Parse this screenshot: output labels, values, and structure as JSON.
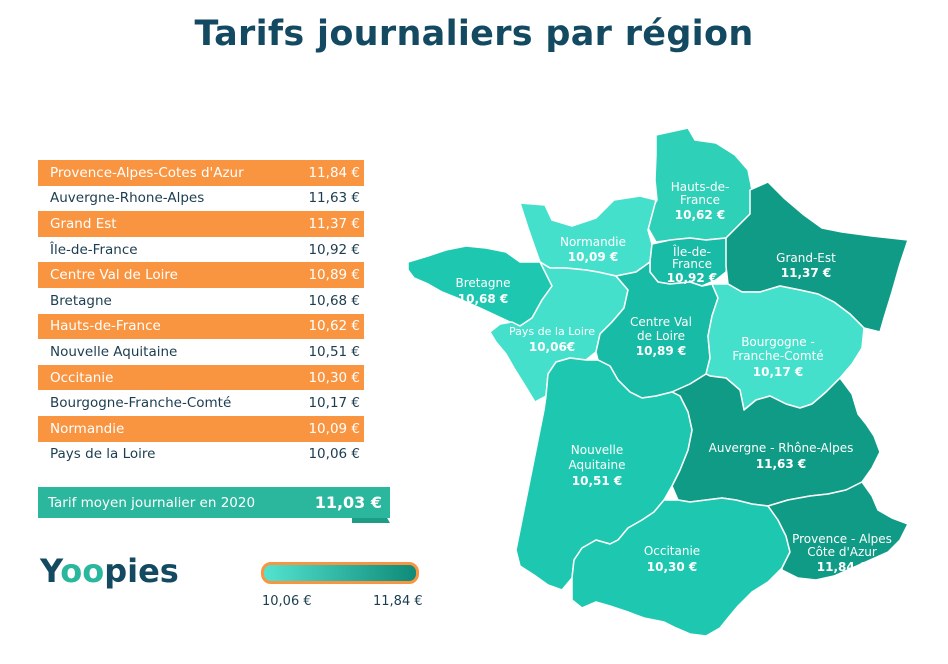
{
  "title": "Tarifs journaliers par région",
  "table": [
    {
      "region": "Provence-Alpes-Cotes d'Azur",
      "value": "11,84 €"
    },
    {
      "region": "Auvergne-Rhone-Alpes",
      "value": "11,63 €"
    },
    {
      "region": "Grand Est",
      "value": "11,37 €"
    },
    {
      "region": "Île-de-France",
      "value": "10,92 €"
    },
    {
      "region": "Centre Val de Loire",
      "value": "10,89 €"
    },
    {
      "region": "Bretagne",
      "value": "10,68 €"
    },
    {
      "region": "Hauts-de-France",
      "value": "10,62 €"
    },
    {
      "region": "Nouvelle Aquitaine",
      "value": "10,51 €"
    },
    {
      "region": "Occitanie",
      "value": "10,30 €"
    },
    {
      "region": "Bourgogne-Franche-Comté",
      "value": "10,17 €"
    },
    {
      "region": "Normandie",
      "value": "10,09 €"
    },
    {
      "region": "Pays de la Loire",
      "value": "10,06 €"
    }
  ],
  "average": {
    "label": "Tarif moyen journalier en 2020",
    "value": "11,03 €"
  },
  "logo": {
    "part1": "Y",
    "part2": "oo",
    "part3": "pies"
  },
  "legend": {
    "min": "10,06 €",
    "max": "11,84 €"
  },
  "colors": {
    "title": "#134a62",
    "orange": "#f99540",
    "teal": "#2bb79e",
    "light": "#45e0cc",
    "mid": "#1cc4ad",
    "dark": "#0f9b86"
  },
  "map": {
    "regions": {
      "hdf": {
        "lines": [
          "Hauts-de-",
          "France"
        ],
        "value": "10,62 €"
      },
      "normandie": {
        "lines": [
          "Normandie"
        ],
        "value": "10,09 €"
      },
      "idf": {
        "lines": [
          "Île-de-",
          "France"
        ],
        "value": "10,92 €"
      },
      "grandest": {
        "lines": [
          "Grand-Est"
        ],
        "value": "11,37 €"
      },
      "bretagne": {
        "lines": [
          "Bretagne"
        ],
        "value": "10,68 €"
      },
      "pdl": {
        "lines": [
          "Pays de la Loire"
        ],
        "value": "10,06€"
      },
      "cvl": {
        "lines": [
          "Centre Val",
          "de Loire"
        ],
        "value": "10,89 €"
      },
      "bfc": {
        "lines": [
          "Bourgogne -",
          "Franche-Comté"
        ],
        "value": "10,17 €"
      },
      "ara": {
        "lines": [
          "Auvergne - Rhône-Alpes"
        ],
        "value": "11,63 €"
      },
      "na": {
        "lines": [
          "Nouvelle",
          "Aquitaine"
        ],
        "value": "10,51 €"
      },
      "occ": {
        "lines": [
          "Occitanie"
        ],
        "value": "10,30 €"
      },
      "paca": {
        "lines": [
          "Provence - Alpes",
          "Côte d'Azur"
        ],
        "value": "11,84 €"
      }
    }
  }
}
